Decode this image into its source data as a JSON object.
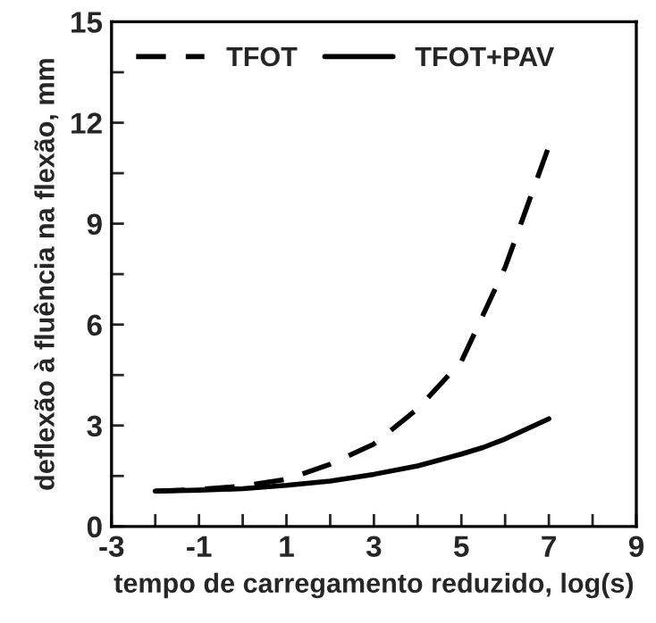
{
  "chart_data": {
    "type": "line",
    "xlabel": "tempo de carregamento reduzido, log(s)",
    "ylabel": "deflexão à fluência na flexão, mm",
    "x": [
      -2,
      -1,
      0,
      1,
      2,
      3,
      4,
      5,
      5.5,
      6,
      6.5,
      7
    ],
    "series": [
      {
        "name": "TFOT",
        "color": "#000000",
        "line_style": "dashed",
        "values": [
          1.05,
          1.1,
          1.2,
          1.4,
          1.85,
          2.45,
          3.5,
          4.9,
          6.3,
          7.7,
          9.5,
          11.3
        ]
      },
      {
        "name": "TFOT+PAV",
        "color": "#000000",
        "line_style": "solid",
        "values": [
          1.05,
          1.08,
          1.12,
          1.22,
          1.35,
          1.55,
          1.8,
          2.15,
          2.35,
          2.6,
          2.9,
          3.2
        ]
      }
    ],
    "xlim": [
      -3,
      9
    ],
    "ylim": [
      0,
      15
    ],
    "xticks": [
      -3,
      {
        "value": -2,
        "label": null
      },
      -1,
      {
        "value": 0,
        "label": null
      },
      1,
      {
        "value": 2,
        "label": null
      },
      3,
      {
        "value": 4,
        "label": null
      },
      5,
      {
        "value": 6,
        "label": null
      },
      7,
      {
        "value": 8,
        "label": null
      },
      9
    ],
    "yticks": [
      0,
      {
        "value": 1.5,
        "label": null
      },
      3,
      {
        "value": 4.5,
        "label": null
      },
      6,
      {
        "value": 7.5,
        "label": null
      },
      9,
      {
        "value": 10.5,
        "label": null
      },
      12,
      {
        "value": 13.5,
        "label": null
      },
      15
    ],
    "grid": false,
    "legend": "top left",
    "marker": "none"
  }
}
